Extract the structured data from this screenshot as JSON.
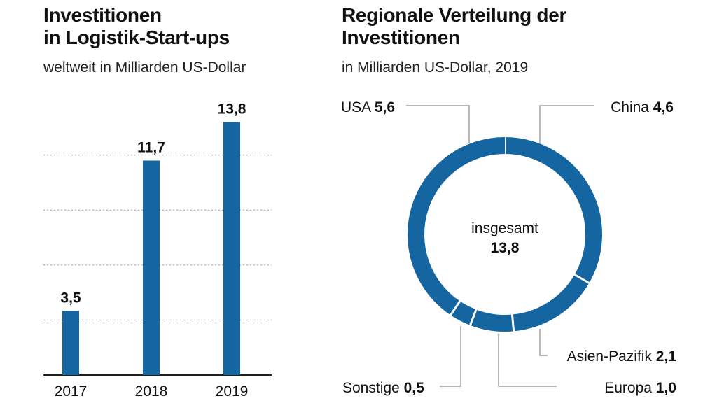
{
  "chart_data": [
    {
      "type": "bar",
      "title_line1": "Investitionen",
      "title_line2": "in Logistik-Start-ups",
      "subtitle": "weltweit in Milliarden US-Dollar",
      "categories": [
        "2017",
        "2018",
        "2019"
      ],
      "values": [
        3.5,
        11.7,
        13.8
      ],
      "value_labels": [
        "3,5",
        "11,7",
        "13,8"
      ],
      "ylim": [
        0,
        14
      ],
      "grid": true,
      "color": "#1565a0"
    },
    {
      "type": "pie",
      "title_line1": "Regionale Verteilung der",
      "title_line2": "Investitionen",
      "subtitle": "in Milliarden US-Dollar, 2019",
      "center_label": "insgesamt",
      "center_value": "13,8",
      "total": 13.8,
      "slices": [
        {
          "label": "China",
          "value": 4.6,
          "value_label": "4,6"
        },
        {
          "label": "Asien-Pazifik",
          "value": 2.1,
          "value_label": "2,1"
        },
        {
          "label": "Europa",
          "value": 1.0,
          "value_label": "1,0"
        },
        {
          "label": "Sonstige",
          "value": 0.5,
          "value_label": "0,5"
        },
        {
          "label": "USA",
          "value": 5.6,
          "value_label": "5,6"
        }
      ],
      "color": "#1565a0"
    }
  ]
}
